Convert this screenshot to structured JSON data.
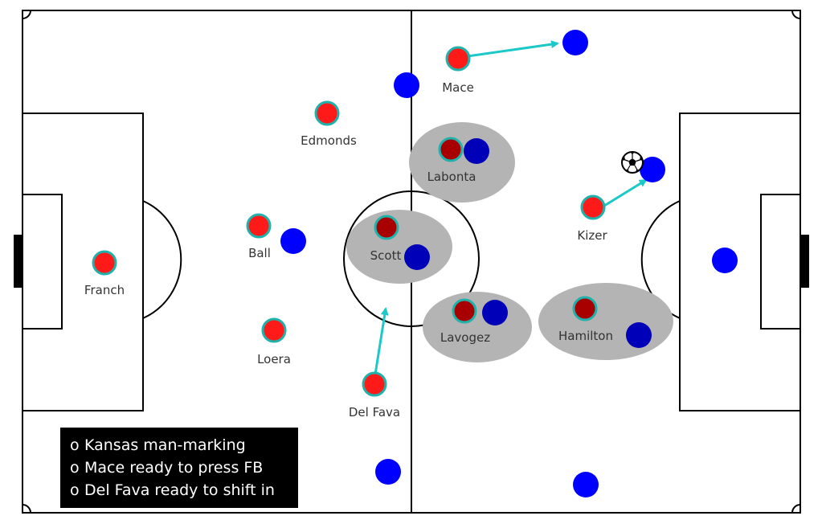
{
  "players_red": [
    {
      "name": "Franch",
      "dark": false
    },
    {
      "name": "Ball",
      "dark": false
    },
    {
      "name": "Loera",
      "dark": false
    },
    {
      "name": "Edmonds",
      "dark": false
    },
    {
      "name": "Del Fava",
      "dark": false
    },
    {
      "name": "Mace",
      "dark": false
    },
    {
      "name": "Labonta",
      "dark": true
    },
    {
      "name": "Scott",
      "dark": true
    },
    {
      "name": "Lavogez",
      "dark": true
    },
    {
      "name": "Hamilton",
      "dark": true
    },
    {
      "name": "Kizer",
      "dark": false
    }
  ],
  "colors": {
    "red": "#ff1a1a",
    "red_outline": "#20b2aa",
    "dark_red": "#a80000",
    "blue": "#0000ff",
    "dark_blue": "#0000b8",
    "arrow": "#1cc8c8",
    "highlight": "#b4b4b4"
  },
  "ball_icon": "soccer-ball-icon",
  "notes": {
    "bullet": "o",
    "items": [
      "Kansas man-marking",
      "Mace ready to press FB",
      "Del Fava ready to shift in"
    ]
  }
}
